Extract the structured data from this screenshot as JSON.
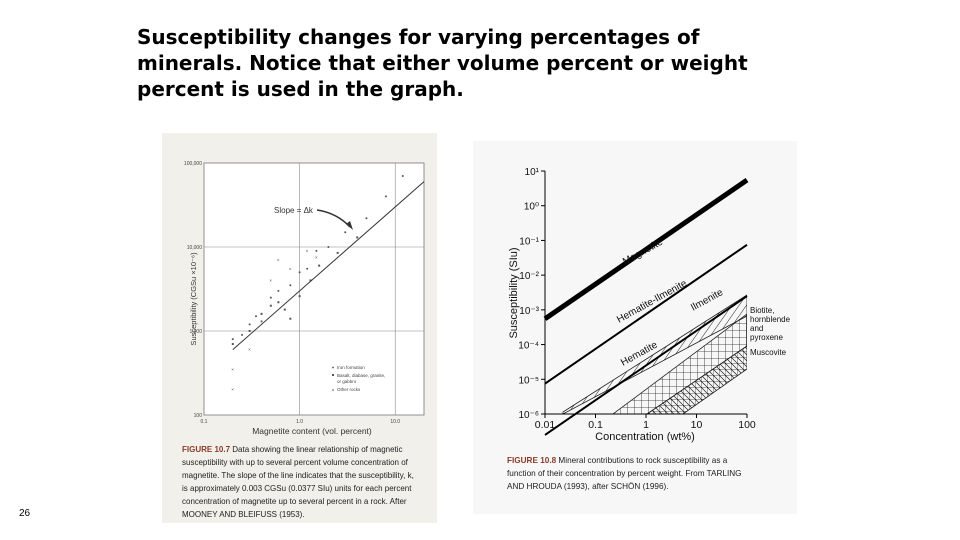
{
  "slide": {
    "title_lines": [
      "Susceptibility changes for varying percentages of",
      "minerals. Notice that either volume percent or weight",
      "percent is used in the graph."
    ],
    "page_number": "26"
  },
  "figure_10_7": {
    "y_ticks": [
      "100,000",
      "10,000",
      "1,000",
      "100"
    ],
    "x_ticks": [
      "0.1",
      "1.0",
      "10.0"
    ],
    "ylabel": "Susceptibility (CGSu ×10⁻⁶)",
    "xlabel": "Magnetite content (vol. percent)",
    "slope_label": "Slope = Δk",
    "legend": [
      "Iron formation",
      "Basalt, diabase, granite,",
      "or gabbro",
      "Other rocks"
    ],
    "caption_lead": "FIGURE 10.7",
    "caption_lines": [
      " Data showing the linear relationship of magnetic",
      "susceptibility with up to several percent volume concentration of",
      "magnetite. The slope of the line indicates that the susceptibility, k,",
      "is approximately 0.003 CGSu (0.0377 SIu) units for each percent",
      "concentration of magnetite up to several percent in a rock. After",
      "MOONEY AND BLEIFUSS (1953)."
    ]
  },
  "figure_10_8": {
    "y_ticks": [
      "10¹",
      "10⁰",
      "10⁻¹",
      "10⁻²",
      "10⁻³",
      "10⁻⁴",
      "10⁻⁵",
      "10⁻⁶"
    ],
    "x_ticks": [
      "0.01",
      "0.1",
      "1",
      "10",
      "100"
    ],
    "ylabel": "Susceptibility (SIu)",
    "xlabel": "Concentration   (wt%)",
    "labels": {
      "magnetite": "Magnetite",
      "hematite_ilmenite": "Hematite-Ilmenite",
      "ilmenite": "Ilmenite",
      "hematite": "Hematite",
      "biotite_lines": [
        "Biotite,",
        "hornblende",
        "and",
        "pyroxene"
      ],
      "muscovite": "Muscovite"
    },
    "caption_lead": "FIGURE 10.8",
    "caption_lines": [
      " Mineral contributions to rock susceptibility as a",
      "function of their concentration by percent weight. From TARLING",
      "AND HROUDA (1993), after SCHÖN (1996)."
    ]
  },
  "chart_data": [
    {
      "type": "scatter",
      "title": "",
      "xlabel": "Magnetite content (vol. percent)",
      "ylabel": "Susceptibility (CGSu ×10⁻⁶)",
      "x_scale": "log",
      "y_scale": "log",
      "xlim": [
        0.1,
        20
      ],
      "ylim": [
        100,
        100000
      ],
      "series": [
        {
          "name": "Iron formation",
          "points": [
            [
              0.2,
              800
            ],
            [
              0.25,
              900
            ],
            [
              0.3,
              1200
            ],
            [
              0.35,
              1500
            ],
            [
              0.4,
              1300
            ],
            [
              0.5,
              2500
            ],
            [
              0.6,
              3000
            ],
            [
              0.8,
              3500
            ],
            [
              1.0,
              5000
            ],
            [
              1.2,
              5500
            ],
            [
              1.5,
              9000
            ],
            [
              2.0,
              10000
            ],
            [
              3.0,
              15000
            ],
            [
              5.0,
              22000
            ],
            [
              8.0,
              40000
            ],
            [
              12.0,
              70000
            ]
          ]
        },
        {
          "name": "Basalt, diabase, granite, or gabbro",
          "points": [
            [
              0.2,
              700
            ],
            [
              0.3,
              1000
            ],
            [
              0.4,
              1600
            ],
            [
              0.5,
              2000
            ],
            [
              0.6,
              2200
            ],
            [
              0.7,
              1800
            ],
            [
              0.8,
              1400
            ],
            [
              1.0,
              2600
            ],
            [
              1.3,
              4000
            ],
            [
              1.6,
              6000
            ],
            [
              2.5,
              8500
            ],
            [
              4.0,
              13000
            ]
          ]
        },
        {
          "name": "Other rocks",
          "points": [
            [
              0.2,
              350
            ],
            [
              0.2,
              200
            ],
            [
              0.3,
              600
            ],
            [
              0.5,
              4000
            ],
            [
              0.6,
              7000
            ],
            [
              0.8,
              5500
            ],
            [
              1.2,
              9000
            ],
            [
              1.5,
              7500
            ]
          ]
        }
      ],
      "trendline": {
        "x": [
          0.2,
          20
        ],
        "y": [
          600,
          60000
        ]
      }
    },
    {
      "type": "line",
      "title": "",
      "xlabel": "Concentration   (wt%)",
      "ylabel": "Susceptibility (SIu)",
      "x_scale": "log",
      "y_scale": "log",
      "xlim": [
        0.01,
        100
      ],
      "ylim": [
        1e-06,
        10
      ],
      "series": [
        {
          "name": "Magnetite",
          "x": [
            0.01,
            100
          ],
          "y": [
            0.00055,
            5.5
          ]
        },
        {
          "name": "Hematite-Ilmenite",
          "x": [
            0.01,
            100
          ],
          "y": [
            7.5e-06,
            0.075
          ]
        },
        {
          "name": "Hematite",
          "x": [
            0.01,
            100
          ],
          "y": [
            2.5e-07,
            0.0025
          ]
        }
      ],
      "regions": [
        "Ilmenite",
        "Biotite, hornblende and pyroxene",
        "Muscovite"
      ]
    }
  ]
}
